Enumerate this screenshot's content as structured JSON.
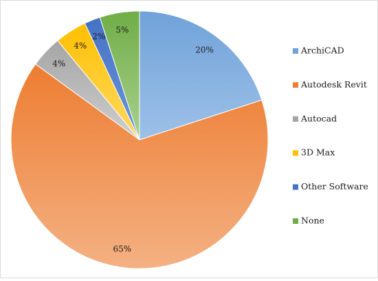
{
  "chart_data": {
    "type": "pie",
    "title": "",
    "legend_position": "right",
    "start_angle_deg": 0,
    "direction": "clockwise",
    "slices": [
      {
        "name": "ArchiCAD",
        "value": 20,
        "label": "20%",
        "color": "#70A2D9",
        "color_light": "#9DC1E8"
      },
      {
        "name": "Autodesk Revit",
        "value": 65,
        "label": "65%",
        "color": "#ED7D31",
        "color_light": "#F4B183"
      },
      {
        "name": "Autocad",
        "value": 4,
        "label": "4%",
        "color": "#A5A5A5",
        "color_light": "#CFCFCF"
      },
      {
        "name": "3D Max",
        "value": 4,
        "label": "4%",
        "color": "#FFC000",
        "color_light": "#FFD966"
      },
      {
        "name": "Other Software",
        "value": 2,
        "label": "2%",
        "color": "#4472C4",
        "color_light": "#6F95DA"
      },
      {
        "name": "None",
        "value": 5,
        "label": "5%",
        "color": "#70AD47",
        "color_light": "#A9D18E"
      }
    ]
  }
}
